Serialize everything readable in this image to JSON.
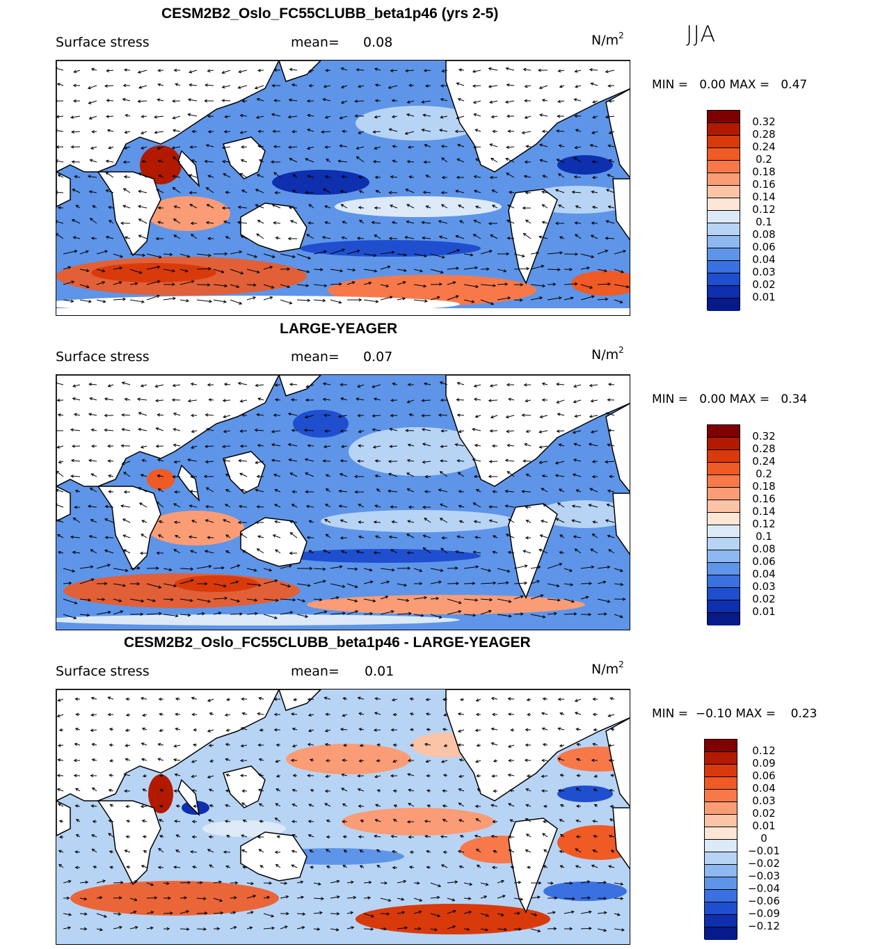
{
  "season": "JJA",
  "panels": [
    {
      "id": "model",
      "title": "CESM2B2_Oslo_FC55CLUBB_beta1p46 (yrs 2-5)",
      "variable": "Surface stress",
      "mean_label": "mean=",
      "mean_value": "0.08",
      "units_base": "N/m",
      "units_sup": "2",
      "min_label": "MIN =",
      "min_value": "0.00",
      "max_label": "MAX =",
      "max_value": "0.47",
      "colorbar_labels": [
        "0.32",
        "0.28",
        "0.24",
        "0.2",
        "0.18",
        "0.16",
        "0.14",
        "0.12",
        "0.1",
        "0.08",
        "0.06",
        "0.04",
        "0.03",
        "0.02",
        "0.01"
      ]
    },
    {
      "id": "obs",
      "title": "LARGE-YEAGER",
      "variable": "Surface stress",
      "mean_label": "mean=",
      "mean_value": "0.07",
      "units_base": "N/m",
      "units_sup": "2",
      "min_label": "MIN =",
      "min_value": "0.00",
      "max_label": "MAX =",
      "max_value": "0.34",
      "colorbar_labels": [
        "0.32",
        "0.28",
        "0.24",
        "0.2",
        "0.18",
        "0.16",
        "0.14",
        "0.12",
        "0.1",
        "0.08",
        "0.06",
        "0.04",
        "0.03",
        "0.02",
        "0.01"
      ]
    },
    {
      "id": "diff",
      "title": "CESM2B2_Oslo_FC55CLUBB_beta1p46 - LARGE-YEAGER",
      "variable": "Surface stress",
      "mean_label": "mean=",
      "mean_value": "0.01",
      "units_base": "N/m",
      "units_sup": "2",
      "min_label": "MIN =",
      "min_value": "−0.10",
      "max_label": "MAX =",
      "max_value": "0.23",
      "colorbar_labels": [
        "0.12",
        "0.09",
        "0.06",
        "0.04",
        "0.03",
        "0.02",
        "0.01",
        "0",
        "−0.01",
        "−0.02",
        "−0.03",
        "−0.04",
        "−0.06",
        "−0.09",
        "−0.12"
      ]
    }
  ],
  "colors": {
    "abs_scale": [
      "#7f0000",
      "#b21a00",
      "#d93a0c",
      "#f05a24",
      "#f7794a",
      "#fa9d77",
      "#fcc4a6",
      "#fde6d6",
      "#dceaf8",
      "#b8d4f5",
      "#8eb8f0",
      "#5e95e8",
      "#3a70e0",
      "#1f4fcf",
      "#0e2fae",
      "#061a8a"
    ],
    "diff_scale": [
      "#7f0000",
      "#b21a00",
      "#d93a0c",
      "#f05a24",
      "#f7794a",
      "#fa9d77",
      "#fcc4a6",
      "#fde6d6",
      "#dceaf8",
      "#b8d4f5",
      "#8eb8f0",
      "#5e95e8",
      "#3a70e0",
      "#1f4fcf",
      "#0e2fae",
      "#061a8a"
    ],
    "land": "#ffffff",
    "coast": "#000000"
  }
}
